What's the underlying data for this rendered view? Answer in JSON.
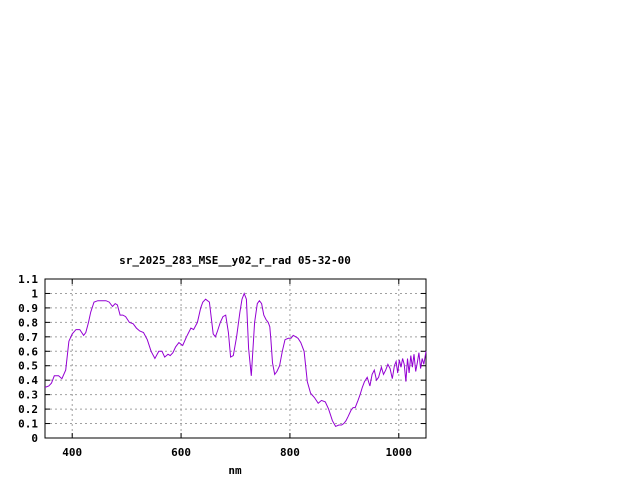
{
  "chart_data": {
    "type": "line",
    "title": "sr_2025_283_MSE__y02_r_rad 05-32-00",
    "xlabel": "nm",
    "ylabel": "",
    "xlim": [
      350,
      1050
    ],
    "ylim": [
      0,
      1.1
    ],
    "xticks": [
      "400",
      "600",
      "800",
      "1000"
    ],
    "yticks": [
      "0",
      "0.1",
      "0.2",
      "0.3",
      "0.4",
      "0.5",
      "0.6",
      "0.7",
      "0.8",
      "0.9",
      "1",
      "1.1"
    ],
    "grid": true,
    "line_color": "#9400d3",
    "series": [
      {
        "x": [
          350,
          357,
          362,
          367,
          375,
          381,
          388,
          394,
          400,
          407,
          414,
          421,
          425,
          430,
          434,
          440,
          447,
          452,
          457,
          462,
          468,
          474,
          479,
          483,
          488,
          493,
          498,
          505,
          512,
          518,
          524,
          531,
          538,
          545,
          552,
          559,
          565,
          570,
          576,
          580,
          585,
          590,
          596,
          603,
          610,
          618,
          623,
          630,
          636,
          640,
          645,
          652,
          659,
          663,
          667,
          672,
          677,
          682,
          687,
          691,
          696,
          702,
          708,
          712,
          716,
          720,
          724,
          729,
          735,
          740,
          744,
          748,
          752,
          756,
          760,
          763,
          765,
          768,
          772,
          776,
          781,
          786,
          791,
          797,
          802,
          806,
          811,
          815,
          820,
          826,
          832,
          838,
          845,
          852,
          858,
          865,
          871,
          878,
          884,
          890,
          895,
          899,
          903,
          907,
          912,
          916,
          920,
          925,
          929,
          933,
          937,
          942,
          947,
          951,
          955,
          959,
          963,
          968,
          972,
          976,
          980,
          984,
          988,
          992,
          995,
          998,
          1001,
          1004,
          1007,
          1010,
          1013,
          1016,
          1019,
          1022,
          1025,
          1028,
          1031,
          1034,
          1037,
          1040,
          1043,
          1046,
          1050
        ],
        "y": [
          0.35,
          0.36,
          0.38,
          0.43,
          0.43,
          0.41,
          0.47,
          0.67,
          0.72,
          0.75,
          0.75,
          0.71,
          0.73,
          0.8,
          0.87,
          0.94,
          0.95,
          0.95,
          0.95,
          0.95,
          0.94,
          0.91,
          0.93,
          0.92,
          0.85,
          0.85,
          0.84,
          0.8,
          0.79,
          0.76,
          0.74,
          0.73,
          0.68,
          0.6,
          0.55,
          0.6,
          0.6,
          0.56,
          0.58,
          0.57,
          0.59,
          0.63,
          0.66,
          0.64,
          0.7,
          0.76,
          0.75,
          0.8,
          0.9,
          0.94,
          0.96,
          0.94,
          0.72,
          0.7,
          0.74,
          0.8,
          0.84,
          0.85,
          0.73,
          0.56,
          0.57,
          0.7,
          0.87,
          0.96,
          1.0,
          0.96,
          0.62,
          0.43,
          0.8,
          0.93,
          0.95,
          0.93,
          0.85,
          0.82,
          0.8,
          0.77,
          0.68,
          0.52,
          0.44,
          0.46,
          0.5,
          0.6,
          0.68,
          0.69,
          0.69,
          0.71,
          0.7,
          0.69,
          0.66,
          0.6,
          0.39,
          0.31,
          0.28,
          0.24,
          0.26,
          0.25,
          0.2,
          0.12,
          0.08,
          0.09,
          0.09,
          0.1,
          0.12,
          0.15,
          0.19,
          0.21,
          0.21,
          0.26,
          0.3,
          0.35,
          0.39,
          0.42,
          0.36,
          0.44,
          0.47,
          0.4,
          0.42,
          0.49,
          0.44,
          0.47,
          0.51,
          0.48,
          0.41,
          0.5,
          0.53,
          0.45,
          0.54,
          0.49,
          0.55,
          0.51,
          0.39,
          0.55,
          0.45,
          0.57,
          0.49,
          0.58,
          0.46,
          0.52,
          0.59,
          0.48,
          0.55,
          0.51,
          0.6
        ]
      }
    ]
  }
}
